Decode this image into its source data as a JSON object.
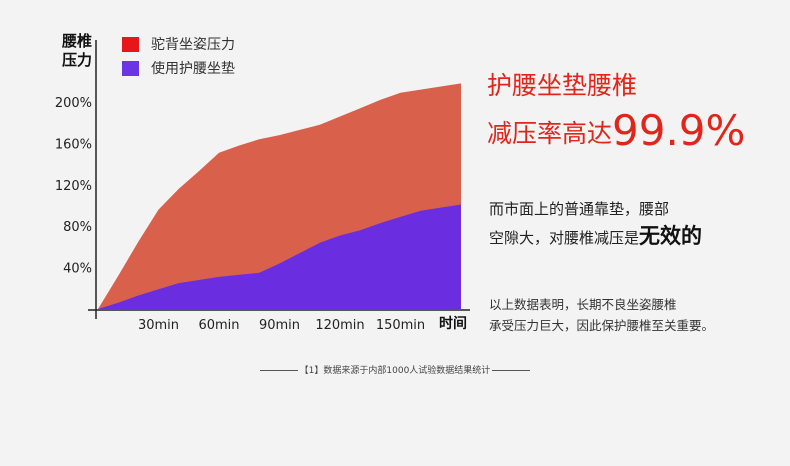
{
  "colors": {
    "background": "#f3f3f3",
    "red": "#d9614c",
    "purple": "#6a2ee0",
    "legend_red": "#e8151b",
    "legend_purple": "#6a36e3",
    "headline": "#e1251b"
  },
  "chart_data": {
    "type": "area",
    "title": "",
    "ylabel_lines": [
      "腰椎",
      "压力"
    ],
    "xlabel": "时间",
    "x": [
      0,
      10,
      20,
      30,
      40,
      50,
      60,
      70,
      80,
      90,
      100,
      110,
      120,
      130,
      140,
      150,
      160,
      170,
      180
    ],
    "x_ticks": [
      30,
      60,
      90,
      120,
      150
    ],
    "x_tick_labels": [
      "30min",
      "60min",
      "90min",
      "120min",
      "150min"
    ],
    "y_ticks": [
      40,
      80,
      120,
      160,
      200
    ],
    "y_tick_labels": [
      "40%",
      "80%",
      "120%",
      "160%",
      "200%"
    ],
    "ylim": [
      0,
      220
    ],
    "xlim": [
      0,
      180
    ],
    "grid": false,
    "legend_position": "top-left",
    "series": [
      {
        "name": "驼背坐姿压力",
        "color": "#d9614c",
        "values": [
          0,
          32,
          65,
          96,
          116,
          133,
          151,
          158,
          164,
          168,
          173,
          178,
          186,
          194,
          202,
          209,
          212,
          215,
          218
        ]
      },
      {
        "name": "使用护腰坐垫",
        "color": "#6a2ee0",
        "values": [
          0,
          6,
          13,
          19,
          25,
          28,
          31,
          33,
          35,
          44,
          54,
          64,
          71,
          76,
          83,
          89,
          95,
          98,
          101
        ]
      }
    ]
  },
  "headline": {
    "line1": "护腰坐垫腰椎",
    "line2_prefix": "减压率高达",
    "line2_big": "99.9%"
  },
  "paragraph1": {
    "line1": "而市面上的普通靠垫，腰部",
    "line2_prefix": "空隙大，对腰椎减压是",
    "line2_strong": "无效的"
  },
  "paragraph2": {
    "line1": "以上数据表明，长期不良坐姿腰椎",
    "line2": "承受压力巨大，因此保护腰椎至关重要。"
  },
  "footnote": "【1】数据来源于内部1000人试验数据结果统计"
}
